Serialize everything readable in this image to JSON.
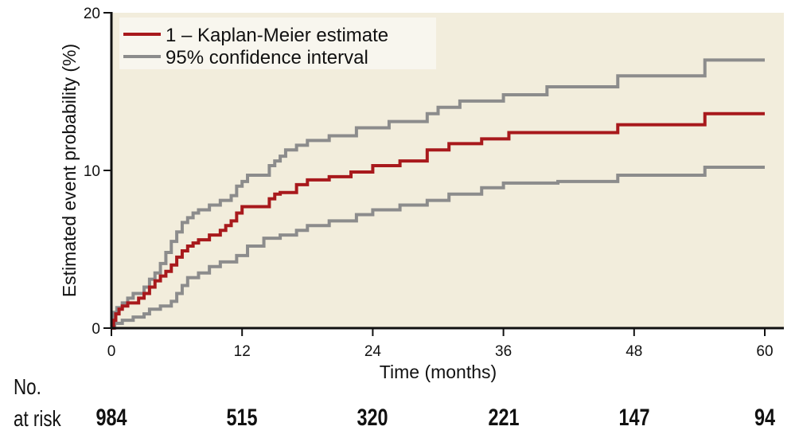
{
  "chart_data": {
    "type": "line",
    "title": "",
    "xlabel": "Time (months)",
    "ylabel": "Estimated event probability (%)",
    "xlim": [
      0,
      61.5
    ],
    "ylim": [
      0,
      20
    ],
    "xticks": [
      0,
      12,
      24,
      36,
      48,
      60
    ],
    "yticks": [
      0,
      10,
      20
    ],
    "grid": false,
    "legend_position": "top-left",
    "background_color": "#f2eddc",
    "series": [
      {
        "name": "1 – Kaplan-Meier estimate",
        "color": "#a8191c",
        "step": true,
        "x": [
          0,
          0.2,
          0.4,
          0.7,
          1.0,
          1.5,
          2.5,
          3.0,
          3.5,
          4.0,
          4.5,
          5.0,
          5.5,
          6.0,
          6.5,
          7.0,
          7.5,
          8.0,
          9.0,
          10.0,
          10.5,
          11.0,
          11.5,
          12.0,
          12.5,
          14.5,
          15.0,
          15.5,
          17.0,
          18.0,
          20.0,
          22.0,
          24.0,
          26.5,
          29.0,
          31.0,
          34.0,
          36.5,
          41.0,
          46.5,
          54.5,
          60.0
        ],
        "y": [
          0,
          0.5,
          0.9,
          1.2,
          1.4,
          1.6,
          1.9,
          2.2,
          2.6,
          3.0,
          3.3,
          3.6,
          4.0,
          4.5,
          4.9,
          5.2,
          5.4,
          5.6,
          5.9,
          6.2,
          6.5,
          6.8,
          7.3,
          7.7,
          7.7,
          8.2,
          8.5,
          8.6,
          9.1,
          9.4,
          9.6,
          9.9,
          10.3,
          10.6,
          11.3,
          11.7,
          12.0,
          12.4,
          12.4,
          12.9,
          13.6,
          13.6
        ]
      },
      {
        "name": "95% confidence interval",
        "color": "#8c8c8c",
        "step": true,
        "x": [
          0,
          0.2,
          0.5,
          1.0,
          1.5,
          2.0,
          3.0,
          3.5,
          4.0,
          4.5,
          5.0,
          5.5,
          6.0,
          6.5,
          7.0,
          7.5,
          8.0,
          9.0,
          10.0,
          11.0,
          11.5,
          12.0,
          12.5,
          14.5,
          15.0,
          15.5,
          16.0,
          17.0,
          18.0,
          20.0,
          22.5,
          25.5,
          29.0,
          30.0,
          32.0,
          36.0,
          40.0,
          46.5,
          54.5,
          60.0
        ],
        "y": [
          0,
          1.0,
          1.3,
          1.6,
          1.9,
          2.2,
          2.6,
          3.1,
          3.5,
          4.1,
          4.8,
          5.5,
          6.1,
          6.7,
          7.0,
          7.3,
          7.5,
          7.8,
          8.1,
          8.4,
          9.0,
          9.3,
          9.7,
          10.3,
          10.6,
          10.9,
          11.3,
          11.6,
          11.9,
          12.2,
          12.7,
          13.1,
          13.6,
          14.0,
          14.4,
          14.8,
          15.3,
          16.0,
          17.0,
          17.0
        ]
      },
      {
        "name": "95% confidence interval (lower)",
        "color": "#8c8c8c",
        "step": true,
        "x": [
          0,
          0.3,
          1.0,
          2.0,
          3.0,
          3.5,
          4.5,
          5.5,
          6.0,
          6.5,
          7.0,
          8.0,
          9.0,
          10.0,
          11.5,
          12.5,
          14.0,
          15.5,
          17.0,
          18.0,
          20.0,
          22.5,
          24.0,
          26.5,
          29.0,
          31.0,
          34.0,
          36.0,
          41.0,
          46.5,
          54.5,
          60.0
        ],
        "y": [
          0,
          0.3,
          0.5,
          0.7,
          0.9,
          1.2,
          1.4,
          1.7,
          2.2,
          2.7,
          3.2,
          3.5,
          3.9,
          4.2,
          4.6,
          5.2,
          5.7,
          5.9,
          6.2,
          6.5,
          6.8,
          7.2,
          7.5,
          7.8,
          8.1,
          8.5,
          8.9,
          9.2,
          9.3,
          9.7,
          10.2,
          10.2
        ]
      }
    ],
    "legend": [
      {
        "label": "1 – Kaplan-Meier estimate",
        "color": "#a8191c"
      },
      {
        "label": "95% confidence interval",
        "color": "#8c8c8c"
      }
    ],
    "number_at_risk": {
      "label_line1": "No.",
      "label_line2": "at risk",
      "times": [
        0,
        12,
        24,
        36,
        48,
        60
      ],
      "values": [
        "984",
        "515",
        "320",
        "221",
        "147",
        "94"
      ]
    }
  }
}
